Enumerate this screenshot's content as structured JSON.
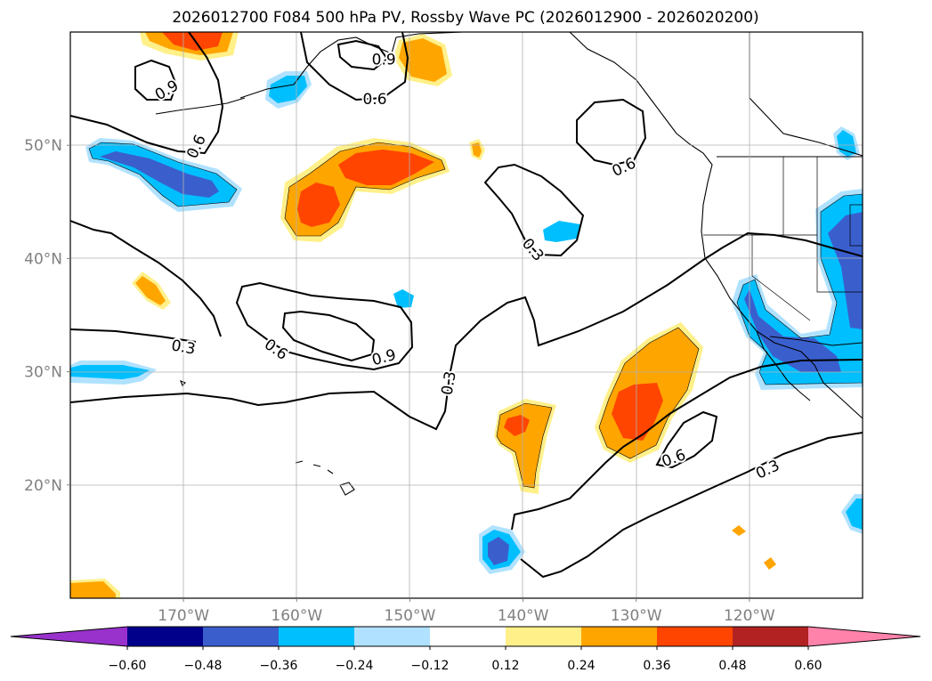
{
  "chart_data": {
    "type": "contour_map",
    "title": "2026012700 F084 500 hPa PV, Rossby Wave PC (2026012900 - 2026020200)",
    "lon_range": [
      -180,
      -110
    ],
    "lat_range": [
      10,
      60
    ],
    "x_ticks": [
      {
        "lon": -170,
        "label": "170°W"
      },
      {
        "lon": -160,
        "label": "160°W"
      },
      {
        "lon": -150,
        "label": "150°W"
      },
      {
        "lon": -140,
        "label": "140°W"
      },
      {
        "lon": -130,
        "label": "130°W"
      },
      {
        "lon": -120,
        "label": "120°W"
      }
    ],
    "y_ticks": [
      {
        "lat": 20,
        "label": "20°N"
      },
      {
        "lat": 30,
        "label": "30°N"
      },
      {
        "lat": 40,
        "label": "40°N"
      },
      {
        "lat": 50,
        "label": "50°N"
      }
    ],
    "grid": true,
    "colorbar": {
      "orientation": "horizontal",
      "extend": "both",
      "levels": [
        -0.6,
        -0.48,
        -0.36,
        -0.24,
        -0.12,
        0.12,
        0.24,
        0.36,
        0.48,
        0.6
      ],
      "tick_labels": [
        "−0.60",
        "−0.48",
        "−0.36",
        "−0.24",
        "−0.12",
        "0.12",
        "0.24",
        "0.36",
        "0.48",
        "0.60"
      ],
      "colors": [
        "#9932cc",
        "#00008b",
        "#3a5fcd",
        "#00bfff",
        "#b0e2ff",
        "#ffffff",
        "#fff08a",
        "#ffa500",
        "#ff4500",
        "#b22222",
        "#ff82ab"
      ]
    },
    "contour_labels": [
      {
        "text": "0.9",
        "lon": -171.5,
        "lat": 54.9,
        "angle": -30
      },
      {
        "text": "0.6",
        "lon": -168.9,
        "lat": 49.9,
        "angle": -65
      },
      {
        "text": "0.9",
        "lon": -152.3,
        "lat": 57.6,
        "angle": 0
      },
      {
        "text": "0.6",
        "lon": -153.1,
        "lat": 54.1,
        "angle": 0
      },
      {
        "text": "0.6",
        "lon": -131.1,
        "lat": 48.1,
        "angle": -25
      },
      {
        "text": "0.3",
        "lon": -139.1,
        "lat": 40.8,
        "angle": 50
      },
      {
        "text": "0.3",
        "lon": -170.0,
        "lat": 32.2,
        "angle": 10
      },
      {
        "text": "0.6",
        "lon": -161.8,
        "lat": 32.0,
        "angle": 35
      },
      {
        "text": "0.9",
        "lon": -152.3,
        "lat": 31.3,
        "angle": -15
      },
      {
        "text": "0.3",
        "lon": -146.6,
        "lat": 29.0,
        "angle": -80
      },
      {
        "text": "0.6",
        "lon": -126.7,
        "lat": 22.4,
        "angle": -20
      },
      {
        "text": "0.3",
        "lon": -118.4,
        "lat": 21.4,
        "angle": -25
      }
    ]
  }
}
